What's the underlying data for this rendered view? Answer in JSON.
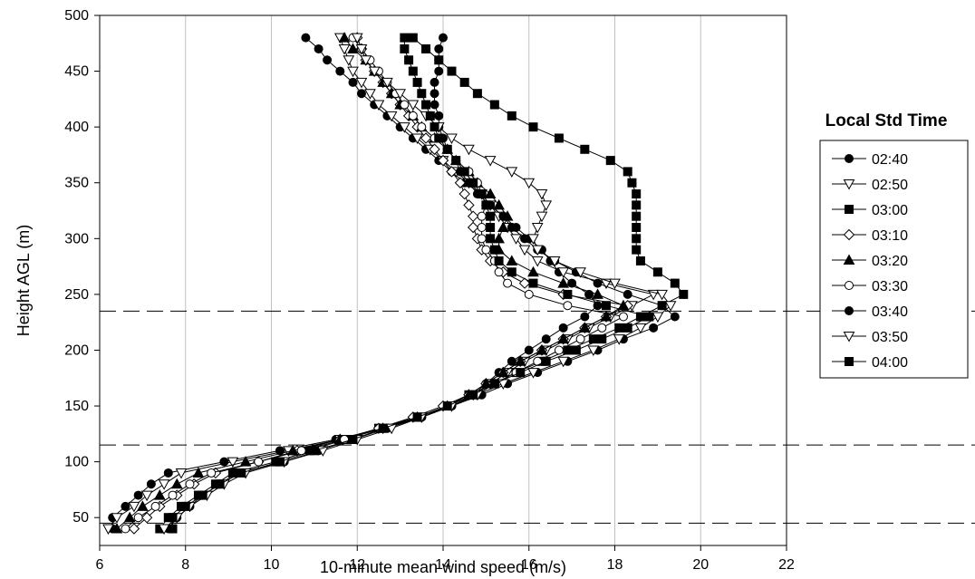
{
  "chart_data": {
    "type": "line",
    "title": "",
    "xlabel": "10-minute mean wind speed (m/s)",
    "ylabel": "Height AGL (m)",
    "xlim": [
      6,
      22
    ],
    "ylim": [
      25,
      500
    ],
    "xticks": [
      "6",
      "8",
      "10",
      "12",
      "14",
      "16",
      "18",
      "20",
      "22"
    ],
    "yticks": [
      "50",
      "100",
      "150",
      "200",
      "250",
      "300",
      "350",
      "400",
      "450",
      "500"
    ],
    "grid": "vertical",
    "legend_title": "Local Std Time",
    "legend_position": "right",
    "reference_lines_y": [
      45,
      115,
      235
    ],
    "y": [
      40,
      50,
      60,
      70,
      80,
      90,
      100,
      110,
      120,
      130,
      140,
      150,
      160,
      170,
      180,
      190,
      200,
      210,
      220,
      230,
      240,
      250,
      260,
      270,
      280,
      290,
      300,
      310,
      320,
      330,
      340,
      350,
      360,
      370,
      380,
      390,
      400,
      410,
      420,
      430,
      440,
      450,
      460,
      470,
      480
    ],
    "series": [
      {
        "name": "02:40",
        "marker": "circle-filled",
        "x": [
          6.3,
          6.3,
          6.6,
          6.9,
          7.2,
          7.6,
          8.9,
          10.2,
          11.5,
          12.6,
          13.5,
          14.1,
          14.7,
          15.0,
          15.3,
          15.6,
          16.0,
          16.4,
          16.8,
          17.3,
          17.6,
          17.4,
          17.0,
          16.7,
          16.5,
          16.3,
          16.0,
          15.7,
          15.4,
          15.1,
          14.9,
          14.5,
          14.2,
          13.9,
          13.6,
          13.3,
          13.0,
          12.7,
          12.4,
          12.1,
          11.9,
          11.6,
          11.3,
          11.1,
          10.8
        ]
      },
      {
        "name": "02:50",
        "marker": "triangle-down-open",
        "x": [
          6.2,
          6.4,
          6.8,
          7.1,
          7.5,
          7.9,
          9.1,
          10.4,
          11.6,
          12.6,
          13.5,
          14.2,
          14.7,
          15.1,
          15.5,
          15.9,
          16.4,
          16.9,
          17.4,
          17.9,
          18.4,
          18.9,
          17.8,
          16.8,
          16.2,
          15.9,
          15.7,
          15.5,
          15.3,
          15.1,
          14.9,
          14.6,
          14.3,
          14.0,
          13.7,
          13.4,
          13.1,
          12.8,
          12.5,
          12.3,
          12.1,
          11.9,
          11.8,
          11.7,
          11.6
        ]
      },
      {
        "name": "03:00",
        "marker": "square-filled",
        "x": [
          7.4,
          7.6,
          7.9,
          8.3,
          8.7,
          9.1,
          10.1,
          10.9,
          11.7,
          12.5,
          13.4,
          14.1,
          14.6,
          15.2,
          15.7,
          16.3,
          16.9,
          17.5,
          18.1,
          18.6,
          19.1,
          19.6,
          19.4,
          19.0,
          18.6,
          18.5,
          18.5,
          18.5,
          18.5,
          18.5,
          18.5,
          18.4,
          18.3,
          17.9,
          17.3,
          16.7,
          16.1,
          15.6,
          15.2,
          14.8,
          14.5,
          14.2,
          13.9,
          13.6,
          13.3
        ]
      },
      {
        "name": "03:10",
        "marker": "diamond-open",
        "x": [
          6.8,
          7.1,
          7.4,
          7.8,
          8.2,
          8.7,
          9.7,
          10.6,
          11.6,
          12.5,
          13.3,
          14.0,
          14.6,
          15.0,
          15.4,
          15.8,
          16.3,
          16.8,
          17.3,
          17.8,
          18.3,
          16.8,
          15.9,
          15.4,
          15.1,
          14.9,
          14.8,
          14.7,
          14.7,
          14.6,
          14.5,
          14.4,
          14.2,
          14.0,
          13.8,
          13.6,
          13.4,
          13.2,
          13.0,
          12.8,
          12.6,
          12.4,
          12.2,
          12.1,
          12.0
        ]
      },
      {
        "name": "03:20",
        "marker": "triangle-up-filled",
        "x": [
          6.4,
          6.7,
          7.0,
          7.4,
          7.8,
          8.3,
          9.4,
          10.5,
          11.6,
          12.6,
          13.4,
          14.1,
          14.6,
          15.0,
          15.4,
          15.8,
          16.3,
          16.8,
          17.3,
          17.8,
          18.2,
          17.6,
          16.8,
          16.1,
          15.6,
          15.3,
          15.3,
          15.4,
          15.5,
          15.3,
          15.1,
          14.8,
          14.6,
          14.3,
          14.1,
          13.8,
          13.5,
          13.3,
          13.0,
          12.8,
          12.6,
          12.4,
          12.2,
          11.9,
          11.7
        ]
      },
      {
        "name": "03:30",
        "marker": "circle-open",
        "x": [
          6.6,
          6.9,
          7.3,
          7.7,
          8.1,
          8.6,
          9.7,
          10.7,
          11.7,
          12.6,
          13.5,
          14.2,
          14.8,
          15.2,
          15.7,
          16.2,
          16.7,
          17.2,
          17.7,
          18.2,
          16.9,
          16.0,
          15.5,
          15.3,
          15.2,
          15.0,
          14.9,
          14.9,
          14.9,
          15.0,
          14.9,
          14.8,
          14.6,
          14.3,
          14.1,
          13.8,
          13.5,
          13.3,
          13.1,
          12.9,
          12.7,
          12.5,
          12.3,
          12.1,
          11.9
        ]
      },
      {
        "name": "03:40",
        "marker": "circle-filled",
        "x": [
          7.6,
          7.8,
          8.1,
          8.4,
          8.8,
          9.2,
          10.3,
          11.1,
          11.9,
          12.7,
          13.5,
          14.2,
          14.9,
          15.5,
          16.2,
          16.9,
          17.6,
          18.2,
          18.9,
          19.4,
          19.1,
          18.3,
          17.6,
          17.1,
          16.6,
          16.2,
          15.9,
          15.6,
          15.4,
          15.1,
          14.8,
          14.6,
          14.4,
          14.3,
          14.1,
          14.0,
          13.9,
          13.9,
          13.8,
          13.8,
          13.8,
          13.9,
          13.9,
          13.9,
          14.0
        ]
      },
      {
        "name": "03:50",
        "marker": "triangle-down-open",
        "x": [
          7.5,
          7.8,
          8.1,
          8.5,
          8.9,
          9.4,
          10.3,
          11.2,
          12.0,
          12.8,
          13.5,
          14.2,
          14.8,
          15.4,
          16.1,
          16.8,
          17.5,
          18.1,
          18.6,
          19.0,
          19.3,
          19.1,
          18.0,
          17.2,
          16.6,
          16.2,
          16.1,
          16.2,
          16.3,
          16.4,
          16.3,
          16.0,
          15.6,
          15.1,
          14.6,
          14.2,
          13.9,
          13.6,
          13.3,
          13.0,
          12.7,
          12.4,
          12.2,
          12.1,
          12.0
        ]
      },
      {
        "name": "04:00",
        "marker": "square-filled",
        "x": [
          7.7,
          7.7,
          8.0,
          8.4,
          8.8,
          9.3,
          10.2,
          11.0,
          11.9,
          12.6,
          13.4,
          14.1,
          14.7,
          15.2,
          15.8,
          16.4,
          17.1,
          17.7,
          18.3,
          18.8,
          17.8,
          16.9,
          16.1,
          15.6,
          15.3,
          15.2,
          15.1,
          15.1,
          15.1,
          15.0,
          14.9,
          14.7,
          14.5,
          14.3,
          14.1,
          13.9,
          13.8,
          13.7,
          13.6,
          13.5,
          13.4,
          13.3,
          13.2,
          13.1,
          13.1
        ]
      }
    ]
  }
}
